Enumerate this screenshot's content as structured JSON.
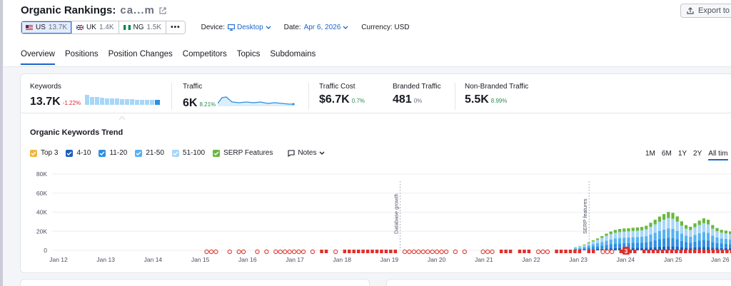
{
  "header": {
    "title": "Organic Rankings:",
    "domain": "ca...m",
    "export_label": "Export to P",
    "databases": [
      {
        "code": "US",
        "count": "13.7K"
      },
      {
        "code": "UK",
        "count": "1.4K"
      },
      {
        "code": "NG",
        "count": "1.5K"
      }
    ],
    "more_label": "•••",
    "device_label": "Device:",
    "device_value": "Desktop",
    "date_label": "Date:",
    "date_value": "Apr 6, 2026",
    "currency_label": "Currency: USD"
  },
  "tabs": [
    "Overview",
    "Positions",
    "Position Changes",
    "Competitors",
    "Topics",
    "Subdomains"
  ],
  "metrics": {
    "keywords": {
      "label": "Keywords",
      "value": "13.7K",
      "delta": "-1.22%"
    },
    "traffic": {
      "label": "Traffic",
      "value": "6K",
      "delta": "8.21%"
    },
    "traffic_cost": {
      "label": "Traffic Cost",
      "value": "$6.7K",
      "delta": "0.7%"
    },
    "branded": {
      "label": "Branded Traffic",
      "value": "481",
      "delta": "0%"
    },
    "non_branded": {
      "label": "Non-Branded Traffic",
      "value": "5.5K",
      "delta": "8.99%"
    }
  },
  "trend": {
    "title": "Organic Keywords Trend",
    "legend": [
      "Top 3",
      "4-10",
      "11-20",
      "21-50",
      "51-100",
      "SERP Features"
    ],
    "notes_label": "Notes",
    "periods": [
      "1M",
      "6M",
      "1Y",
      "2Y",
      "All tim"
    ]
  },
  "colors": {
    "top3": "#f2b53c",
    "pos4_10": "#1e5fb8",
    "pos11_20": "#2e8fe0",
    "pos21_50": "#57b2f0",
    "pos51_100": "#a7d6f7",
    "serp": "#69b83e",
    "accent": "#1b66c9"
  },
  "chart_data": {
    "type": "bar",
    "y_ticks": [
      "80K",
      "60K",
      "40K",
      "20K",
      "0"
    ],
    "ylim": [
      0,
      80000
    ],
    "x_ticks": [
      "Jan 12",
      "Jan 13",
      "Jan 14",
      "Jan 15",
      "Jan 16",
      "Jan 17",
      "Jan 18",
      "Jan 19",
      "Jan 20",
      "Jan 21",
      "Jan 22",
      "Jan 23",
      "Jan 24",
      "Jan 25",
      "Jan 26"
    ],
    "annotations": [
      {
        "label": "Database growth",
        "x": "Jan 19"
      },
      {
        "label": "SERP features",
        "x": "Jan 23"
      }
    ],
    "marker_badge": "3",
    "series_order": [
      "pos4_10",
      "pos11_20",
      "pos21_50",
      "pos51_100",
      "serp"
    ],
    "bars": [
      [
        500,
        800,
        900,
        1000,
        300
      ],
      [
        700,
        1000,
        1200,
        1300,
        400
      ],
      [
        900,
        1400,
        1500,
        1800,
        600
      ],
      [
        1100,
        1900,
        2200,
        2300,
        800
      ],
      [
        1300,
        2400,
        2700,
        3000,
        1100
      ],
      [
        1500,
        2800,
        3200,
        3600,
        1400
      ],
      [
        1700,
        3300,
        3800,
        4300,
        1800
      ],
      [
        2000,
        3800,
        4400,
        5000,
        2300
      ],
      [
        2200,
        4200,
        5000,
        5600,
        2700
      ],
      [
        2400,
        4600,
        5400,
        6000,
        3000
      ],
      [
        2500,
        4800,
        5600,
        6300,
        3200
      ],
      [
        2600,
        4900,
        5700,
        6400,
        3300
      ],
      [
        2600,
        5000,
        5800,
        6500,
        3300
      ],
      [
        2700,
        5100,
        5900,
        6600,
        3400
      ],
      [
        2700,
        5200,
        6000,
        6700,
        3400
      ],
      [
        2800,
        5300,
        6100,
        6800,
        3500
      ],
      [
        2900,
        5600,
        6400,
        7200,
        3700
      ],
      [
        3200,
        6300,
        7200,
        8000,
        4200
      ],
      [
        3500,
        7000,
        8000,
        8800,
        4800
      ],
      [
        3800,
        7800,
        8800,
        9600,
        5400
      ],
      [
        4000,
        8400,
        9400,
        10300,
        5900
      ],
      [
        4200,
        8900,
        9900,
        10800,
        6400
      ],
      [
        4100,
        8700,
        9700,
        10600,
        6200
      ],
      [
        3800,
        7800,
        8800,
        9700,
        5500
      ],
      [
        3300,
        6600,
        7600,
        8400,
        4500
      ],
      [
        2900,
        5800,
        6600,
        7300,
        3800
      ],
      [
        2700,
        5400,
        6200,
        6900,
        3500
      ],
      [
        3000,
        6200,
        7100,
        7900,
        4100
      ],
      [
        3300,
        6800,
        7800,
        8700,
        4600
      ],
      [
        3600,
        7300,
        8300,
        9300,
        5000
      ],
      [
        3400,
        7000,
        8000,
        8900,
        4800
      ],
      [
        2900,
        5800,
        6600,
        7400,
        3800
      ],
      [
        2600,
        5100,
        5900,
        6500,
        3300
      ],
      [
        2400,
        4700,
        5400,
        6000,
        3000
      ],
      [
        2300,
        4500,
        5200,
        5800,
        2900
      ],
      [
        2200,
        4300,
        5000,
        5600,
        2700
      ],
      [
        2100,
        4100,
        4800,
        5300,
        2600
      ],
      [
        2000,
        3900,
        4600,
        5100,
        2500
      ],
      [
        1900,
        3700,
        4400,
        4900,
        2400
      ],
      [
        1800,
        3500,
        4200,
        4700,
        2300
      ]
    ],
    "marker_row": "GGG  G GG  G G GGGGGGG G ■■ G ■■■■■■■■■■■■ GGGGGGGGGG G G   GGG ■■■ ■■■ GGG ■■■■■■ ■■ GGG ■■■■ ■■■■■■■■■■■■■■■■■■■■"
  }
}
